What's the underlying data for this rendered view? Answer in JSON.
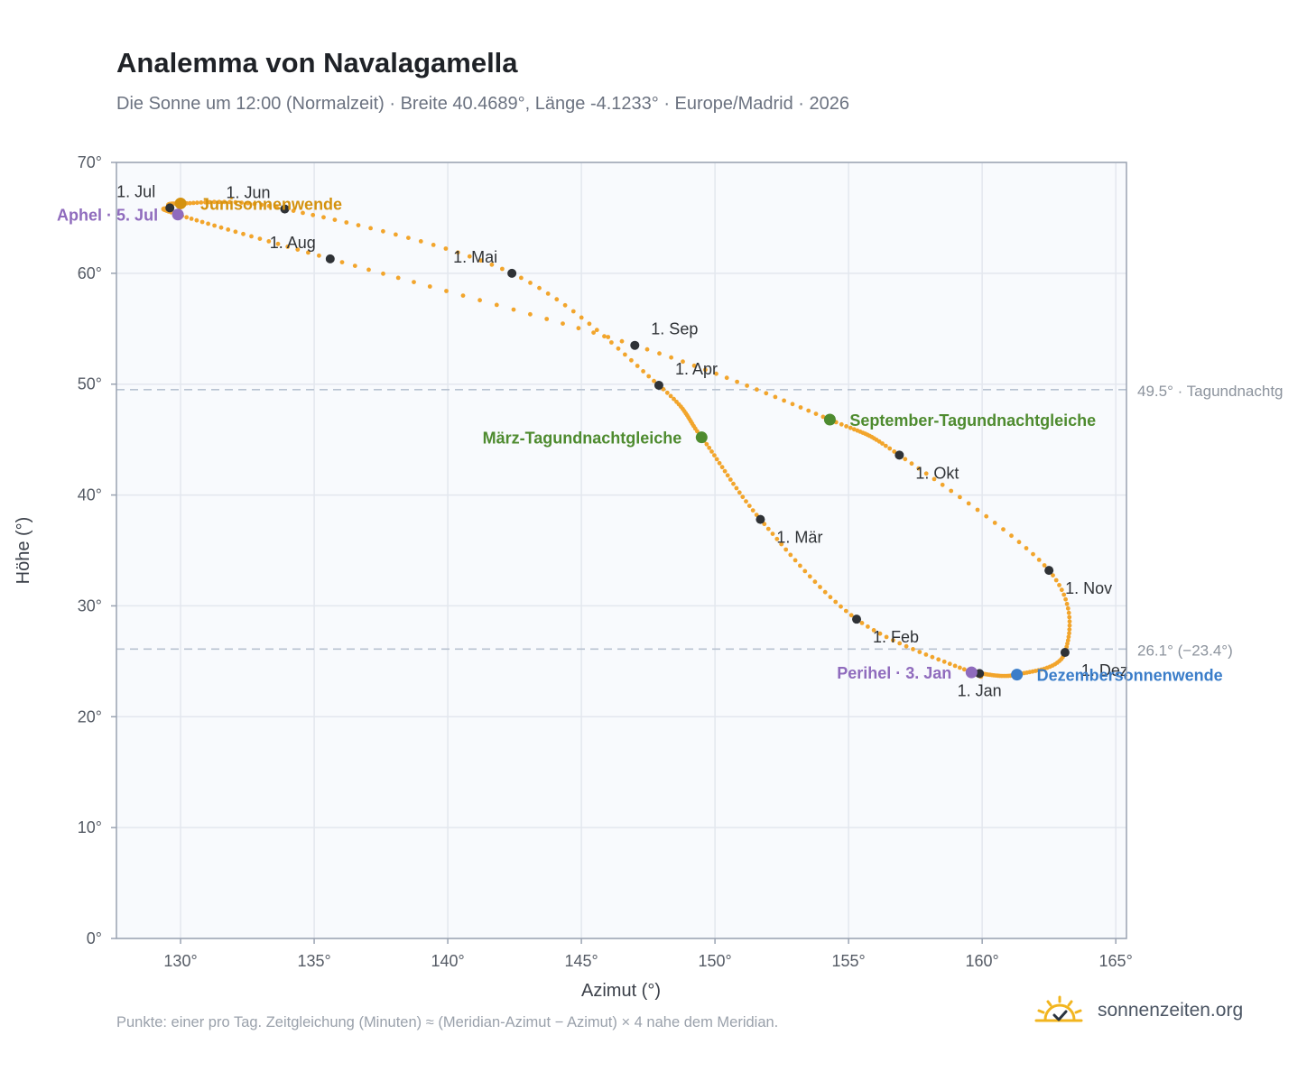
{
  "title": "Analemma von Navalagamella",
  "subtitle": "Die Sonne um 12:00 (Normalzeit) · Breite 40.4689°, Länge -4.1233° · Europe/Madrid · 2026",
  "footnote": "Punkte: einer pro Tag. Zeitgleichung (Minuten) ≈ (Meridian-Azimut − Azimut) × 4 nahe dem Meridian.",
  "brand": {
    "text": "sonnenzeiten.org",
    "icon": "sun-logo-icon"
  },
  "colors": {
    "path": "#f2a52c",
    "marker": "#2f3236",
    "solstice_june": "#d4920f",
    "solstice_december": "#3a7dc9",
    "equinox": "#4e8b2f",
    "perihelion_aphelion": "#8f6bbd",
    "plot_bg": "#f8fafd",
    "grid": "#e3e7ee",
    "frame": "#9aa3b2",
    "refline": "#b9c3d1"
  },
  "chart_data": {
    "type": "scatter",
    "xlabel": "Azimut (°)",
    "ylabel": "Höhe (°)",
    "xlim": [
      127.6,
      165.4
    ],
    "ylim": [
      0,
      70
    ],
    "xticks": [
      {
        "v": 130,
        "label": "130°"
      },
      {
        "v": 135,
        "label": "135°"
      },
      {
        "v": 140,
        "label": "140°"
      },
      {
        "v": 145,
        "label": "145°"
      },
      {
        "v": 150,
        "label": "150°"
      },
      {
        "v": 155,
        "label": "155°"
      },
      {
        "v": 160,
        "label": "160°"
      },
      {
        "v": 165,
        "label": "165°"
      }
    ],
    "yticks": [
      {
        "v": 0,
        "label": "0°"
      },
      {
        "v": 10,
        "label": "10°"
      },
      {
        "v": 20,
        "label": "20°"
      },
      {
        "v": 30,
        "label": "30°"
      },
      {
        "v": 40,
        "label": "40°"
      },
      {
        "v": 50,
        "label": "50°"
      },
      {
        "v": 60,
        "label": "60°"
      },
      {
        "v": 70,
        "label": "70°"
      }
    ],
    "grid": true,
    "curve": "one point per day along a closed figure-eight loop through the month and event markers",
    "path_keypoints": [
      {
        "az": 159.9,
        "alt": 23.9
      },
      {
        "az": 161.3,
        "alt": 23.8
      },
      {
        "az": 163.1,
        "alt": 25.8
      },
      {
        "az": 162.5,
        "alt": 33.2
      },
      {
        "az": 156.9,
        "alt": 43.6
      },
      {
        "az": 154.3,
        "alt": 46.8
      },
      {
        "az": 147.0,
        "alt": 53.5
      },
      {
        "az": 135.6,
        "alt": 61.3
      },
      {
        "az": 129.9,
        "alt": 65.3
      },
      {
        "az": 129.6,
        "alt": 65.9
      },
      {
        "az": 130.0,
        "alt": 66.3
      },
      {
        "az": 133.9,
        "alt": 65.8
      },
      {
        "az": 142.4,
        "alt": 60.0
      },
      {
        "az": 147.9,
        "alt": 49.9
      },
      {
        "az": 149.5,
        "alt": 45.2
      },
      {
        "az": 151.7,
        "alt": 37.8
      },
      {
        "az": 155.3,
        "alt": 28.8
      },
      {
        "az": 159.6,
        "alt": 24.0
      }
    ],
    "month_markers": [
      {
        "label": "1. Jan",
        "az": 159.9,
        "alt": 23.9,
        "pos": "below"
      },
      {
        "label": "1. Feb",
        "az": 155.3,
        "alt": 28.8,
        "pos": "below-right"
      },
      {
        "label": "1. Mär",
        "az": 151.7,
        "alt": 37.8,
        "pos": "below-right"
      },
      {
        "label": "1. Apr",
        "az": 147.9,
        "alt": 49.9,
        "pos": "above-right"
      },
      {
        "label": "1. Mai",
        "az": 142.4,
        "alt": 60.0,
        "pos": "above-left"
      },
      {
        "label": "1. Jun",
        "az": 133.9,
        "alt": 65.8,
        "pos": "above-left"
      },
      {
        "label": "1. Jul",
        "az": 129.6,
        "alt": 65.9,
        "pos": "above-left"
      },
      {
        "label": "1. Aug",
        "az": 135.6,
        "alt": 61.3,
        "pos": "above-left"
      },
      {
        "label": "1. Sep",
        "az": 147.0,
        "alt": 53.5,
        "pos": "above-right"
      },
      {
        "label": "1. Okt",
        "az": 156.9,
        "alt": 43.6,
        "pos": "below-right"
      },
      {
        "label": "1. Nov",
        "az": 162.5,
        "alt": 33.2,
        "pos": "below-right"
      },
      {
        "label": "1. Dez",
        "az": 163.1,
        "alt": 25.8,
        "pos": "below-right"
      }
    ],
    "events": [
      {
        "label": "Junisonnenwende",
        "az": 130.0,
        "alt": 66.3,
        "color": "#d4920f",
        "pos": "right"
      },
      {
        "label": "Aphel · 5. Jul",
        "az": 129.9,
        "alt": 65.3,
        "color": "#8f6bbd",
        "pos": "left"
      },
      {
        "label": "März-Tagundnachtgleiche",
        "az": 149.5,
        "alt": 45.2,
        "color": "#4e8b2f",
        "pos": "left"
      },
      {
        "label": "September-Tagundnachtgleiche",
        "az": 154.3,
        "alt": 46.8,
        "color": "#4e8b2f",
        "pos": "right"
      },
      {
        "label": "Perihel · 3. Jan",
        "az": 159.6,
        "alt": 24.0,
        "color": "#8f6bbd",
        "pos": "left"
      },
      {
        "label": "Dezembersonnenwende",
        "az": 161.3,
        "alt": 23.8,
        "color": "#3a7dc9",
        "pos": "right"
      }
    ],
    "reference_lines": [
      {
        "alt": 49.5,
        "label": "49.5° · Tagundnachtg"
      },
      {
        "alt": 26.1,
        "label": "26.1° (−23.4°)"
      }
    ]
  }
}
